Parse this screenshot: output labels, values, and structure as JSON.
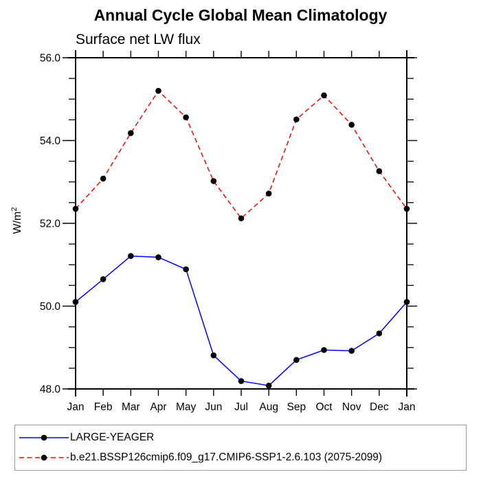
{
  "chart_data": {
    "type": "line",
    "title": "Annual Cycle Global Mean Climatology",
    "subtitle": "Surface net LW flux",
    "ylabel_base": "W/m",
    "ylabel_sup": "2",
    "ylabel_text": "W/m2",
    "categories": [
      "Jan",
      "Feb",
      "Mar",
      "Apr",
      "May",
      "Jun",
      "Jul",
      "Aug",
      "Sep",
      "Oct",
      "Nov",
      "Dec",
      "Jan"
    ],
    "series": [
      {
        "name": "LARGE-YEAGER",
        "color": "#0000ff",
        "line_style": "solid",
        "marker": "filled-circle",
        "marker_color": "#000000",
        "values": [
          50.1,
          50.65,
          51.21,
          51.18,
          50.89,
          48.81,
          48.19,
          48.08,
          48.7,
          48.94,
          48.92,
          49.34,
          50.1
        ]
      },
      {
        "name": "b.e21.BSSP126cmip6.f09_g17.CMIP6-SSP1-2.6.103 (2075-2099)",
        "color": "#ff0000",
        "line_style": "dashed",
        "marker": "filled-circle",
        "marker_color": "#000000",
        "values": [
          52.35,
          53.08,
          54.18,
          55.2,
          54.56,
          53.02,
          52.12,
          52.72,
          54.51,
          55.09,
          54.38,
          53.26,
          52.35
        ]
      }
    ],
    "ylim": [
      48.0,
      56.0
    ],
    "yticks": [
      48.0,
      50.0,
      52.0,
      54.0,
      56.0
    ],
    "ytick_labels": [
      "48.0",
      "50.0",
      "52.0",
      "54.0",
      "56.0"
    ],
    "ytick_minor_step": 0.5,
    "grid": false,
    "legend_position": "bottom-left-box",
    "frame_color": "#000000",
    "text_color": "#000000"
  }
}
